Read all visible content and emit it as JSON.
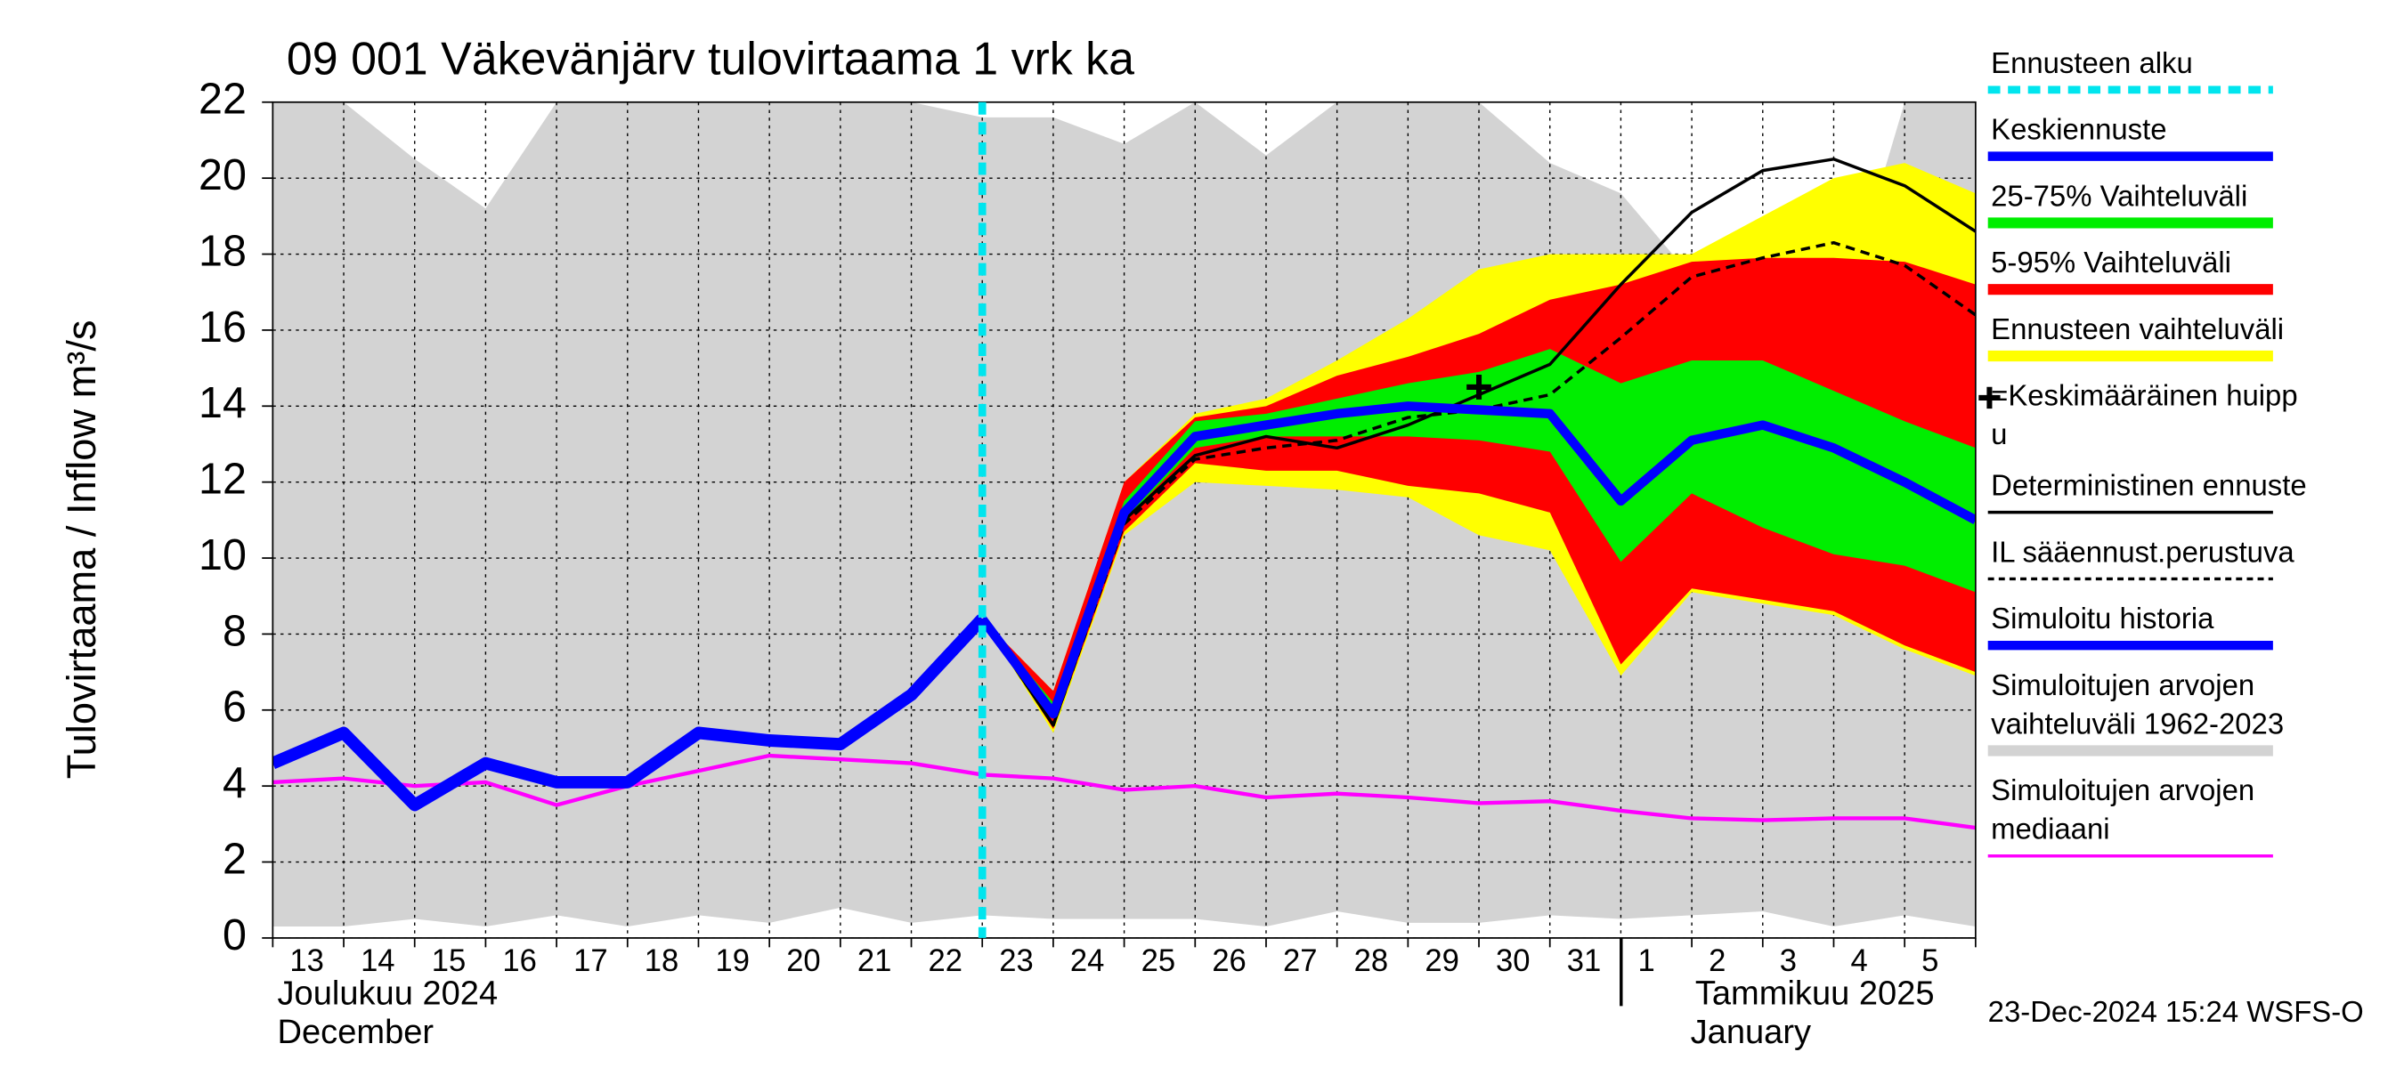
{
  "chart_data": {
    "type": "line",
    "title": "09 001 Väkevänjärv tulovirtaama 1 vrk ka",
    "y_label": "Tulovirtaama / Inflow    m³/s",
    "footer": "23-Dec-2024 15:24 WSFS-O",
    "months": [
      [
        "Joulukuu  2024",
        "December"
      ],
      [
        "Tammikuu  2025",
        "January"
      ]
    ],
    "categories": [
      "13",
      "14",
      "15",
      "16",
      "17",
      "18",
      "19",
      "20",
      "21",
      "22",
      "23",
      "24",
      "25",
      "26",
      "27",
      "28",
      "29",
      "30",
      "31",
      "1",
      "2",
      "3",
      "4",
      "5",
      null
    ],
    "ylim": [
      0,
      22
    ],
    "yticks": [
      0,
      2,
      4,
      6,
      8,
      10,
      12,
      14,
      16,
      18,
      20,
      22
    ],
    "grid": true,
    "forecast_start": {
      "name": "Ennusteen alku",
      "x": 10,
      "color": "#00e5ee"
    },
    "mean_peak": {
      "name": [
        "=Keskimääräinen huipp",
        "u"
      ],
      "x": 17,
      "y": 14.5,
      "color": "#000000"
    },
    "series": [
      {
        "name": [
          "Keskiennuste"
        ],
        "kind": "line",
        "color": "#0000ff",
        "width": 6,
        "values": [
          null,
          null,
          null,
          null,
          null,
          null,
          null,
          null,
          null,
          null,
          8.4,
          5.9,
          11.2,
          13.2,
          13.5,
          13.8,
          14.0,
          13.9,
          13.8,
          11.5,
          13.1,
          13.5,
          12.9,
          12.0,
          11.0
        ]
      },
      {
        "name": [
          "25-75% Vaihteluväli"
        ],
        "kind": "band",
        "color": "#00ee00",
        "lower": [
          null,
          null,
          null,
          null,
          null,
          null,
          null,
          null,
          null,
          null,
          8.4,
          5.8,
          11.0,
          12.9,
          13.2,
          13.2,
          13.2,
          13.1,
          12.8,
          9.9,
          11.7,
          10.8,
          10.1,
          9.8,
          9.1
        ],
        "upper": [
          null,
          null,
          null,
          null,
          null,
          null,
          null,
          null,
          null,
          null,
          8.4,
          6.2,
          11.5,
          13.6,
          13.8,
          14.2,
          14.6,
          14.9,
          15.5,
          14.6,
          15.2,
          15.2,
          14.4,
          13.6,
          12.9
        ]
      },
      {
        "name": [
          "5-95% Vaihteluväli"
        ],
        "kind": "band",
        "color": "#ff0000",
        "lower": [
          null,
          null,
          null,
          null,
          null,
          null,
          null,
          null,
          null,
          null,
          8.4,
          5.5,
          10.7,
          12.5,
          12.3,
          12.3,
          11.9,
          11.7,
          11.2,
          7.2,
          9.2,
          8.9,
          8.6,
          7.7,
          7.0
        ],
        "upper": [
          null,
          null,
          null,
          null,
          null,
          null,
          null,
          null,
          null,
          null,
          8.4,
          6.5,
          12.0,
          13.7,
          14.0,
          14.8,
          15.3,
          15.9,
          16.8,
          17.2,
          17.8,
          17.9,
          17.9,
          17.8,
          17.2
        ]
      },
      {
        "name": [
          "Ennusteen vaihteluväli"
        ],
        "kind": "band",
        "color": "#ffff00",
        "lower": [
          null,
          null,
          null,
          null,
          null,
          null,
          null,
          null,
          null,
          null,
          8.4,
          5.4,
          10.6,
          12.0,
          11.9,
          11.8,
          11.6,
          10.6,
          10.2,
          6.9,
          9.1,
          8.8,
          8.5,
          7.6,
          6.9
        ],
        "upper": [
          null,
          null,
          null,
          null,
          null,
          null,
          null,
          null,
          null,
          null,
          8.4,
          6.5,
          12.0,
          13.8,
          14.2,
          15.2,
          16.3,
          17.6,
          18.0,
          18.0,
          18.0,
          19.0,
          20.0,
          20.4,
          19.6
        ]
      },
      {
        "name": [
          "Deterministinen ennuste"
        ],
        "kind": "line",
        "color": "#000000",
        "width": 2,
        "values": [
          null,
          null,
          null,
          null,
          null,
          null,
          null,
          null,
          null,
          null,
          8.4,
          5.6,
          11.0,
          12.7,
          13.2,
          12.9,
          13.5,
          14.3,
          15.1,
          17.2,
          19.1,
          20.2,
          20.5,
          19.8,
          18.6
        ]
      },
      {
        "name": [
          "IL sääennust.perustuva"
        ],
        "kind": "line",
        "color": "#000000",
        "width": 2,
        "dashed": true,
        "values": [
          null,
          null,
          null,
          null,
          null,
          null,
          null,
          null,
          null,
          null,
          8.4,
          5.6,
          10.9,
          12.6,
          12.9,
          13.1,
          13.7,
          13.9,
          14.3,
          15.8,
          17.4,
          17.9,
          18.3,
          17.7,
          16.4
        ]
      },
      {
        "name": [
          "Simuloitu historia"
        ],
        "kind": "line",
        "color": "#0000ff",
        "width": 8,
        "values": [
          4.6,
          5.4,
          3.5,
          4.6,
          4.1,
          4.1,
          5.4,
          5.2,
          5.1,
          6.4,
          8.4,
          null,
          null,
          null,
          null,
          null,
          null,
          null,
          null,
          null,
          null,
          null,
          null,
          null,
          null
        ]
      },
      {
        "name": [
          "Simuloitujen arvojen",
          "vaihteluväli 1962-2023"
        ],
        "kind": "band",
        "color": "#d3d3d3",
        "lower": [
          0.3,
          0.3,
          0.5,
          0.3,
          0.6,
          0.3,
          0.6,
          0.4,
          0.8,
          0.4,
          0.6,
          0.5,
          0.5,
          0.5,
          0.3,
          0.7,
          0.4,
          0.4,
          0.6,
          0.5,
          0.6,
          0.7,
          0.3,
          0.6,
          0.3
        ],
        "upper": [
          22,
          22,
          20.5,
          19.2,
          22,
          22,
          22,
          22,
          22,
          22,
          21.6,
          21.6,
          20.9,
          22,
          20.6,
          22,
          22,
          22,
          20.4,
          19.6,
          17.4,
          17.4,
          15.7,
          22,
          22
        ]
      },
      {
        "name": [
          "Simuloitujen arvojen",
          "mediaani"
        ],
        "kind": "line",
        "color": "#ff00ff",
        "width": 2.5,
        "values": [
          4.1,
          4.2,
          4.0,
          4.1,
          3.5,
          4.0,
          4.4,
          4.8,
          4.7,
          4.6,
          4.3,
          4.2,
          3.9,
          4.0,
          3.7,
          3.8,
          3.7,
          3.55,
          3.6,
          3.35,
          3.15,
          3.1,
          3.15,
          3.15,
          2.9
        ]
      }
    ]
  }
}
